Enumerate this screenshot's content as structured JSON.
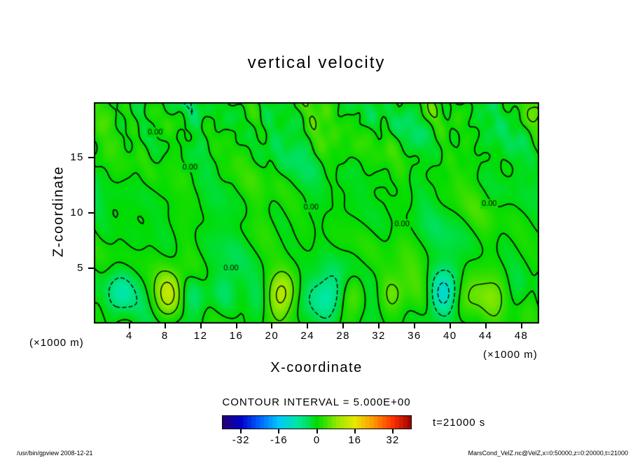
{
  "chart_data": {
    "type": "heatmap",
    "title": "vertical velocity",
    "xlabel": "X-coordinate",
    "ylabel": "Z-coordinate",
    "x_unit_label": "(×1000 m)",
    "y_unit_label": "(×1000 m)",
    "xlim": [
      0,
      50
    ],
    "ylim": [
      0,
      20
    ],
    "x_ticks": [
      4,
      8,
      12,
      16,
      20,
      24,
      28,
      32,
      36,
      40,
      44,
      48
    ],
    "y_ticks": [
      5,
      10,
      15
    ],
    "grid": false,
    "contour_interval": 5.0,
    "contour_interval_label": "CONTOUR INTERVAL = 5.000E+00",
    "contour_levels_drawn": [
      -10,
      -5,
      0,
      5,
      10
    ],
    "contour_label_text": "0.00",
    "contour_label_positions": [
      [
        6.9,
        17.3
      ],
      [
        10.8,
        14.1
      ],
      [
        15.4,
        5.0
      ],
      [
        24.4,
        10.5
      ],
      [
        34.6,
        9.0
      ],
      [
        44.4,
        10.8
      ]
    ],
    "time_label": "t=21000 s",
    "colorbar": {
      "min": -40,
      "max": 40,
      "ticks": [
        -32,
        -16,
        0,
        16,
        32
      ],
      "segments": 45,
      "colormap_stops": [
        [
          -40,
          "#2a0070"
        ],
        [
          -32,
          "#0000c8"
        ],
        [
          -24,
          "#0064ff"
        ],
        [
          -16,
          "#00c8ff"
        ],
        [
          -8,
          "#00e8a0"
        ],
        [
          -4,
          "#00e060"
        ],
        [
          0,
          "#00dc00"
        ],
        [
          4,
          "#40e000"
        ],
        [
          8,
          "#90e800"
        ],
        [
          16,
          "#e8e800"
        ],
        [
          24,
          "#ff9600"
        ],
        [
          32,
          "#ff3200"
        ],
        [
          40,
          "#960000"
        ]
      ]
    }
  },
  "footer": {
    "left": "/usr/bin/gpview  2008-12-21",
    "right": "MarsCond_VelZ.nc@VelZ,x=0:50000,z=0:20000,t=21000"
  }
}
